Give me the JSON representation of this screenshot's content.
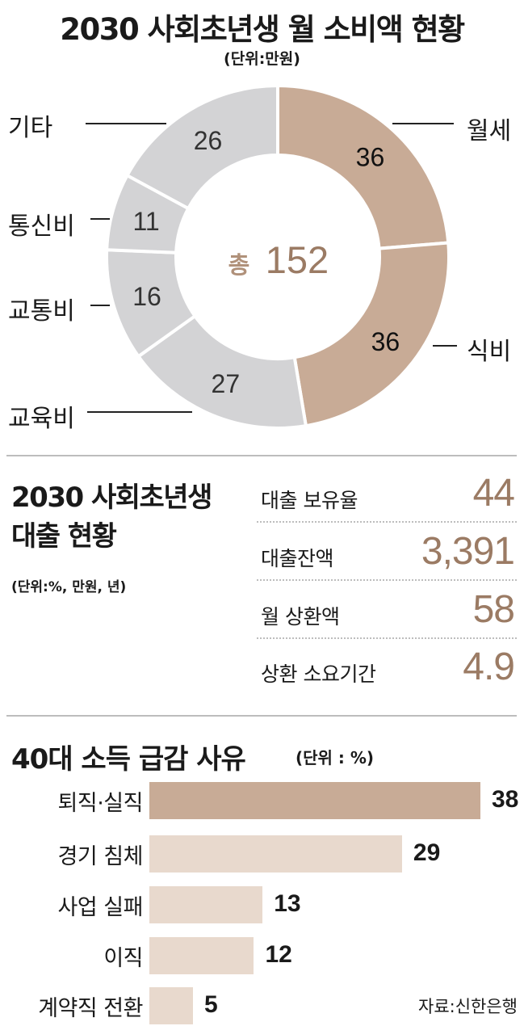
{
  "section1": {
    "title": "2030 사회초년생 월 소비액 현황",
    "unit": "(단위:만원)",
    "center_prefix": "총",
    "center_total": "152"
  },
  "section2": {
    "title_line1": "2030 사회초년생",
    "title_line2": "대출 현황",
    "unit": "(단위:%, 만원, 년)",
    "stats": [
      {
        "label": "대출 보유율",
        "value": "44"
      },
      {
        "label": "대출잔액",
        "value": "3,391"
      },
      {
        "label": "월 상환액",
        "value": "58"
      },
      {
        "label": "상환 소요기간",
        "value": "4.9"
      }
    ]
  },
  "section3": {
    "title": "40대 소득 급감 사유",
    "unit": "(단위 : %)"
  },
  "source": "자료:신한은행",
  "colors": {
    "highlight": "#c8ab96",
    "neutral": "#d3d3d5",
    "bar_highlight": "#c8ab96",
    "bar_light": "#e8d9cd",
    "value_text": "#9b7b64"
  },
  "chart_data": [
    {
      "type": "pie",
      "title": "2030 사회초년생 월 소비액 현황",
      "unit": "(단위:만원)",
      "total": 152,
      "categories": [
        "월세",
        "식비",
        "교육비",
        "교통비",
        "통신비",
        "기타"
      ],
      "values": [
        36,
        36,
        27,
        16,
        11,
        26
      ],
      "highlighted": [
        "월세",
        "식비"
      ]
    },
    {
      "type": "bar",
      "orientation": "horizontal",
      "title": "40대 소득 급감 사유",
      "unit": "(단위 : %)",
      "categories": [
        "퇴직·실직",
        "경기 침체",
        "사업 실패",
        "이직",
        "계약직 전환"
      ],
      "values": [
        38,
        29,
        13,
        12,
        5
      ],
      "highlighted": [
        "퇴직·실직"
      ]
    }
  ]
}
